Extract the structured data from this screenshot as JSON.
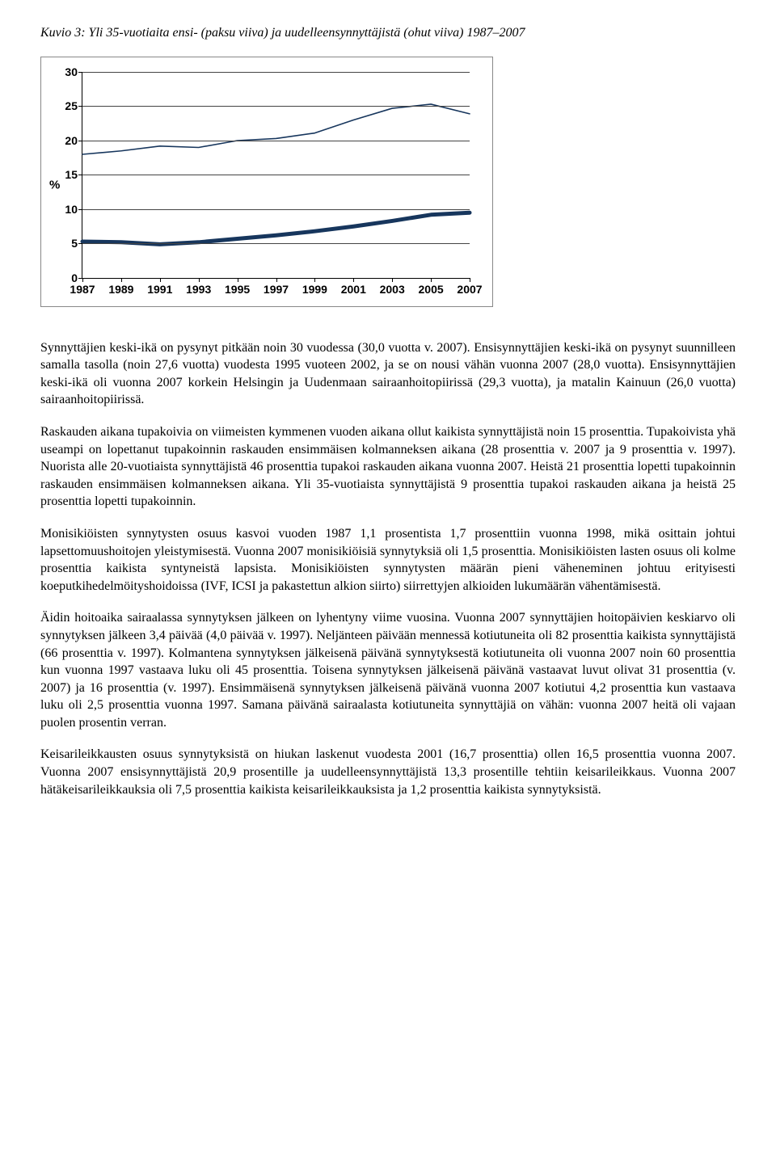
{
  "figure": {
    "title": "Kuvio 3: Yli 35-vuotiaita ensi- (paksu viiva) ja uudelleensynnyttäjistä (ohut viiva) 1987–2007",
    "chart": {
      "type": "line",
      "y_unit": "%",
      "ylim": [
        0,
        30
      ],
      "ytick_step": 5,
      "x_categories": [
        "1987",
        "1989",
        "1991",
        "1993",
        "1995",
        "1997",
        "1999",
        "2001",
        "2003",
        "2005",
        "2007"
      ],
      "grid_color": "#444444",
      "background_color": "#ffffff",
      "series": [
        {
          "name": "uudelleensynnyttäjät (ohut)",
          "color": "#17365d",
          "width": 1.6,
          "values": [
            18.0,
            18.5,
            19.2,
            19.0,
            20.0,
            20.3,
            21.1,
            23.0,
            24.7,
            25.3,
            23.9
          ]
        },
        {
          "name": "ensisynnyttäjät (paksu)",
          "color": "#17365d",
          "width": 5,
          "values": [
            5.3,
            5.2,
            4.9,
            5.2,
            5.7,
            6.2,
            6.8,
            7.5,
            8.3,
            9.2,
            9.5
          ]
        }
      ]
    }
  },
  "paragraphs": {
    "p1": "Synnyttäjien keski-ikä on pysynyt pitkään noin 30 vuodessa (30,0 vuotta v. 2007). Ensisynnyttäjien keski-ikä on pysynyt suunnilleen samalla tasolla (noin 27,6 vuotta) vuodesta 1995 vuoteen 2002, ja se on nousi vähän vuonna 2007 (28,0 vuotta). Ensisynnyttäjien keski-ikä oli vuonna 2007 korkein Helsingin ja Uudenmaan sairaanhoitopiirissä (29,3 vuotta), ja matalin Kainuun (26,0 vuotta) sairaanhoitopiirissä.",
    "p2": "Raskauden aikana tupakoivia on viimeisten kymmenen vuoden aikana ollut kaikista synnyttäjistä noin 15 prosenttia. Tupakoivista yhä useampi on lopettanut tupakoinnin raskauden ensimmäisen kolmanneksen aikana (28 prosenttia v. 2007 ja 9 prosenttia v. 1997). Nuorista alle 20-vuotiaista synnyttäjistä 46 prosenttia tupakoi raskauden aikana vuonna 2007. Heistä 21 prosenttia lopetti tupakoinnin raskauden ensimmäisen kolmanneksen aikana. Yli 35-vuotiaista synnyttäjistä 9 prosenttia tupakoi raskauden aikana ja heistä 25 prosenttia lopetti tupakoinnin.",
    "p3": "Monisikiöisten synnytysten osuus kasvoi vuoden 1987 1,1 prosentista 1,7 prosenttiin vuonna 1998, mikä osittain johtui lapsettomuushoitojen yleistymisestä. Vuonna 2007 monisikiöisiä synnytyksiä oli 1,5 prosenttia. Monisikiöisten lasten osuus oli kolme prosenttia kaikista syntyneistä lapsista. Monisikiöisten synnytysten määrän pieni väheneminen johtuu erityisesti koeputkihedelmöityshoidoissa (IVF, ICSI ja pakastettun alkion siirto) siirrettyjen alkioiden lukumäärän vähentämisestä.",
    "p4": "Äidin hoitoaika sairaalassa synnytyksen jälkeen on lyhentyny viime vuosina. Vuonna 2007 synnyttäjien hoitopäivien keskiarvo oli synnytyksen jälkeen 3,4 päivää (4,0 päivää  v. 1997). Neljänteen päivään mennessä kotiutuneita oli 82 prosenttia kaikista synnyttäjistä (66 prosenttia v. 1997). Kolmantena synnytyksen jälkeisenä päivänä synnytyksestä kotiutuneita oli vuonna 2007 noin 60 prosenttia kun vuonna 1997 vastaava luku oli 45 prosenttia.  Toisena synnytyksen jälkeisenä päivänä vastaavat luvut olivat 31 prosenttia (v. 2007) ja 16 prosenttia (v. 1997). Ensimmäisenä synnytyksen jälkeisenä päivänä vuonna 2007 kotiutui 4,2 prosenttia kun vastaava luku oli 2,5 prosenttia vuonna 1997. Samana päivänä sairaalasta kotiutuneita synnyttäjiä on vähän: vuonna 2007 heitä oli vajaan puolen prosentin verran.",
    "p5": "Keisarileikkausten osuus synnytyksistä on hiukan laskenut vuodesta 2001 (16,7 prosenttia) ollen 16,5 prosenttia vuonna 2007. Vuonna 2007 ensisynnyttäjistä 20,9 prosentille ja uudelleensynnyttäjistä 13,3 prosentille tehtiin keisarileikkaus. Vuonna 2007 hätäkeisarileikkauksia oli 7,5 prosenttia kaikista keisarileikkauksista ja 1,2 prosenttia kaikista synnytyksistä."
  }
}
